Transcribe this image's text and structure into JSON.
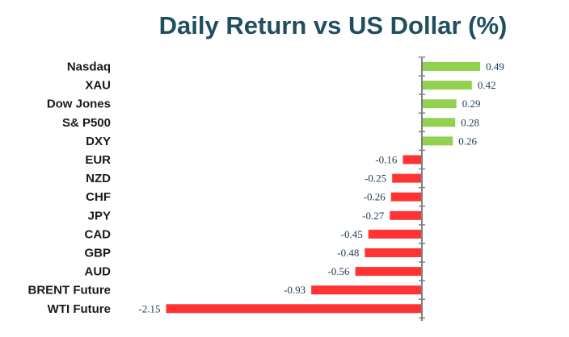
{
  "chart_data": {
    "type": "bar",
    "orientation": "horizontal",
    "title": "Daily Return vs US Dollar (%)",
    "categories": [
      "Nasdaq",
      "XAU",
      "Dow Jones",
      "S& P500",
      "DXY",
      "EUR",
      "NZD",
      "CHF",
      "JPY",
      "CAD",
      "GBP",
      "AUD",
      "BRENT Future",
      "WTI Future"
    ],
    "values": [
      0.49,
      0.42,
      0.29,
      0.28,
      0.26,
      -0.16,
      -0.25,
      -0.26,
      -0.27,
      -0.45,
      -0.48,
      -0.56,
      -0.93,
      -2.15
    ],
    "value_labels": [
      "0.49",
      "0.42",
      "0.29",
      "0.28",
      "0.26",
      "-0.16",
      "-0.25",
      "-0.26",
      "-0.27",
      "-0.45",
      "-0.48",
      "-0.56",
      "-0.93",
      "-2.15"
    ],
    "colors": {
      "positive": "#92d050",
      "negative": "#ff3333",
      "axis": "#808080"
    },
    "grid": false,
    "legend": "none"
  }
}
